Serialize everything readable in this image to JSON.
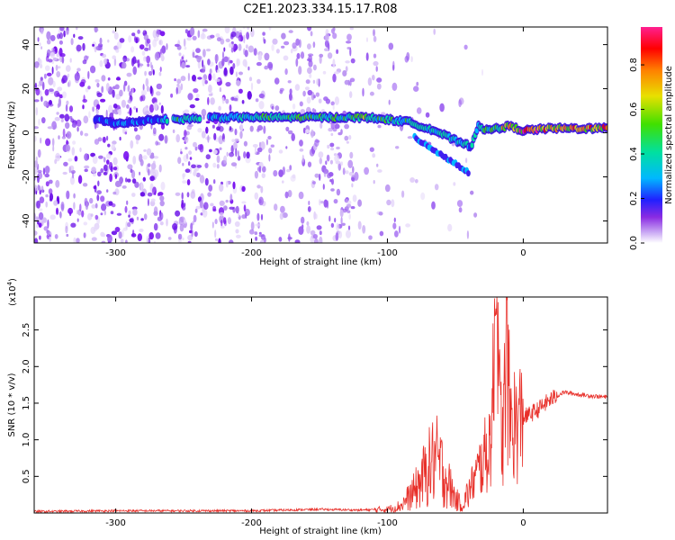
{
  "title": "C2E1.2023.334.15.17.R08",
  "colors": {
    "line": "#e8302a",
    "scheme": [
      "#ffffff",
      "#e4d4f8",
      "#b98cf0",
      "#7a14f0",
      "#2020ff",
      "#00b8ff",
      "#00e0a0",
      "#40e000",
      "#e8e000",
      "#ff8000",
      "#ff0000",
      "#ff2090"
    ]
  },
  "chart_data": [
    {
      "type": "heatmap",
      "xlabel": "Height of straight line (km)",
      "ylabel": "Frequency (Hz)",
      "xlim": [
        -360,
        62
      ],
      "ylim": [
        -50,
        48
      ],
      "xticks": [
        -300,
        -200,
        -100,
        0
      ],
      "xtick_labels": [
        "-300",
        "-200",
        "-100",
        "0"
      ],
      "yticks": [
        -40,
        -20,
        0,
        20,
        40
      ],
      "ytick_labels": [
        "-40",
        "-20",
        "0",
        "20",
        "40"
      ],
      "colorbar": {
        "label": "Normalized spectral amplitude",
        "range": [
          0,
          0.97
        ],
        "ticks": [
          0,
          0.2,
          0.4,
          0.6,
          0.8
        ],
        "tick_labels": [
          "0.0",
          "0.2",
          "0.4",
          "0.6",
          "0.8"
        ]
      },
      "ridge": {
        "x": [
          -315,
          -295,
          -275,
          -255,
          -230,
          -200,
          -170,
          -140,
          -115,
          -100,
          -85,
          -75,
          -65,
          -55,
          -45,
          -38,
          -33,
          -28,
          -20,
          -10,
          0,
          20,
          40,
          62
        ],
        "frequency": [
          6,
          4,
          6,
          6,
          7,
          7,
          7,
          7,
          7,
          6,
          5,
          3,
          1,
          -2,
          -5,
          -6,
          4,
          1,
          2,
          3,
          1,
          2,
          2,
          2
        ],
        "amplitude": [
          0.3,
          0.35,
          0.3,
          0.5,
          0.4,
          0.45,
          0.55,
          0.55,
          0.6,
          0.5,
          0.5,
          0.45,
          0.45,
          0.45,
          0.45,
          0.4,
          0.45,
          0.55,
          0.65,
          0.75,
          0.9,
          0.8,
          0.85,
          0.8
        ]
      }
    },
    {
      "type": "line",
      "xlabel": "Height of straight line (km)",
      "ylabel": "SNR (10 * v/v)",
      "yscale_label": "(x10",
      "yscale_exp": "4",
      "yscale_close": ")",
      "xlim": [
        -360,
        62
      ],
      "ylim": [
        0,
        2.95
      ],
      "xticks": [
        -300,
        -200,
        -100,
        0
      ],
      "xtick_labels": [
        "-300",
        "-200",
        "-100",
        "0"
      ],
      "yticks": [
        0.5,
        1.0,
        1.5,
        2.0,
        2.5
      ],
      "ytick_labels": [
        "0.5",
        "1.0",
        "1.5",
        "2.0",
        "2.5"
      ],
      "series": [
        {
          "x": [
            -360,
            -300,
            -200,
            -150,
            -120,
            -100,
            -90,
            -80,
            -70,
            -65,
            -60,
            -55,
            -50,
            -45,
            -40,
            -35,
            -30,
            -25,
            -22,
            -20,
            -18,
            -15,
            -12,
            -10,
            -5,
            0,
            10,
            20,
            30,
            40,
            50,
            62
          ],
          "y": [
            0.02,
            0.03,
            0.03,
            0.05,
            0.04,
            0.05,
            0.1,
            0.3,
            0.6,
            0.75,
            0.6,
            0.4,
            0.2,
            0.1,
            0.3,
            0.5,
            0.7,
            0.9,
            1.6,
            2.9,
            1.5,
            1.0,
            2.3,
            1.3,
            1.2,
            1.3,
            1.4,
            1.55,
            1.65,
            1.62,
            1.6,
            1.58
          ]
        }
      ]
    }
  ]
}
